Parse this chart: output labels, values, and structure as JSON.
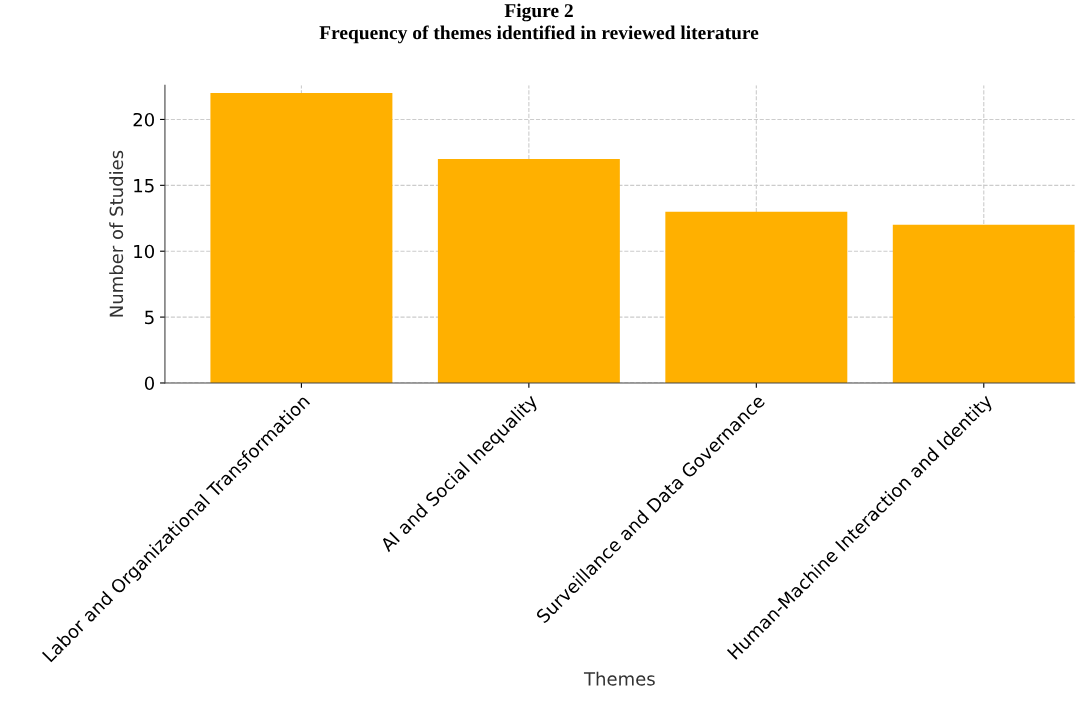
{
  "chart_data": {
    "type": "bar",
    "title": "Figure 2\nFrequency of themes identified in reviewed literature",
    "categories": [
      "Labor and Organizational Transformation",
      "AI and Social Inequality",
      "Surveillance and Data Governance",
      "Human-Machine Interaction and Identity"
    ],
    "values": [
      22,
      17,
      13,
      12
    ],
    "color": "#ffb000",
    "xlabel": "Themes",
    "ylabel": "Number of Studies",
    "ylim": [
      0,
      22.6
    ],
    "yticks": [
      0,
      5,
      10,
      15,
      20
    ],
    "grid": true
  }
}
